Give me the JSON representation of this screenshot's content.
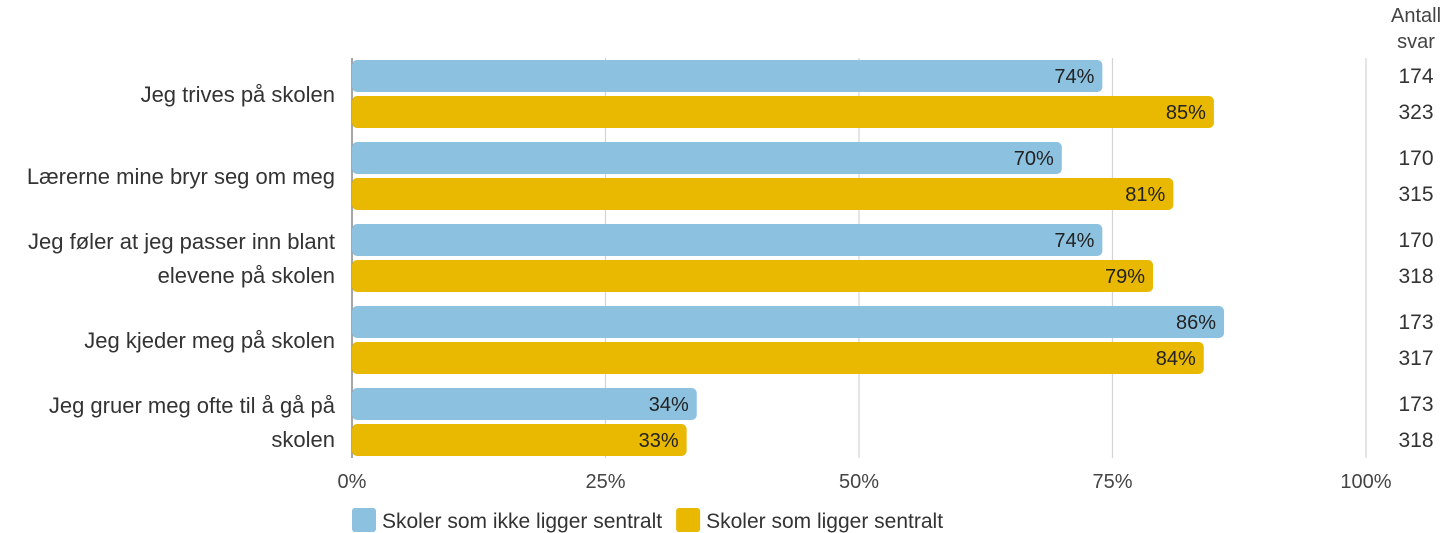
{
  "chart_data": {
    "type": "bar",
    "orientation": "horizontal",
    "categories": [
      [
        "Jeg trives på skolen"
      ],
      [
        "Lærerne mine bryr seg om meg"
      ],
      [
        "Jeg føler at jeg passer inn blant",
        "elevene på skolen"
      ],
      [
        "Jeg kjeder meg på skolen"
      ],
      [
        "Jeg gruer meg ofte til å gå på",
        "skolen"
      ]
    ],
    "series": [
      {
        "name": "Skoler som ikke ligger sentralt",
        "color": "#8cc2e0",
        "values": [
          74,
          70,
          74,
          86,
          34
        ],
        "labels": [
          "74%",
          "70%",
          "74%",
          "86%",
          "34%"
        ],
        "counts": [
          "174",
          "170",
          "170",
          "173",
          "173"
        ]
      },
      {
        "name": "Skoler som ligger sentralt",
        "color": "#e9b800",
        "values": [
          85,
          81,
          79,
          84,
          33
        ],
        "labels": [
          "85%",
          "81%",
          "79%",
          "84%",
          "33%"
        ],
        "counts": [
          "323",
          "315",
          "318",
          "317",
          "318"
        ]
      }
    ],
    "xlim": [
      0,
      100
    ],
    "xticks": [
      0,
      25,
      50,
      75,
      100
    ],
    "xtick_labels": [
      "0%",
      "25%",
      "50%",
      "75%",
      "100%"
    ],
    "count_header": [
      "Antall",
      "svar"
    ],
    "grid": true,
    "legend_position": "bottom-left"
  }
}
